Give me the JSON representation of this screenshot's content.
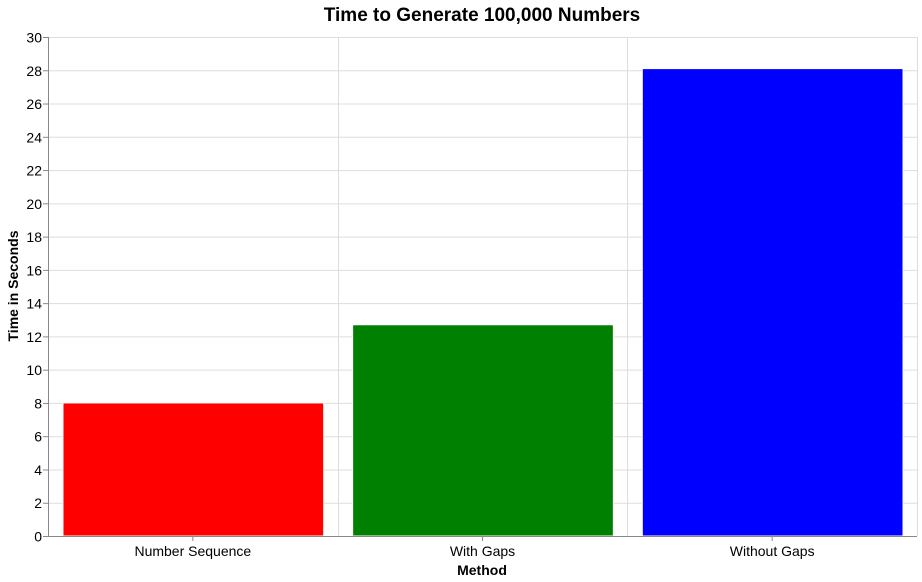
{
  "chart_data": {
    "type": "bar",
    "title": "Time to Generate 100,000 Numbers",
    "xlabel": "Method",
    "ylabel": "Time in Seconds",
    "categories": [
      "Number Sequence",
      "With Gaps",
      "Without Gaps"
    ],
    "values": [
      8.0,
      12.7,
      28.1
    ],
    "colors": [
      "#ff0000",
      "#008000",
      "#0000ff"
    ],
    "ylim": [
      0,
      30
    ],
    "yticks": [
      0,
      2,
      4,
      6,
      8,
      10,
      12,
      14,
      16,
      18,
      20,
      22,
      24,
      26,
      28,
      30
    ],
    "grid": true,
    "legend": "none"
  }
}
